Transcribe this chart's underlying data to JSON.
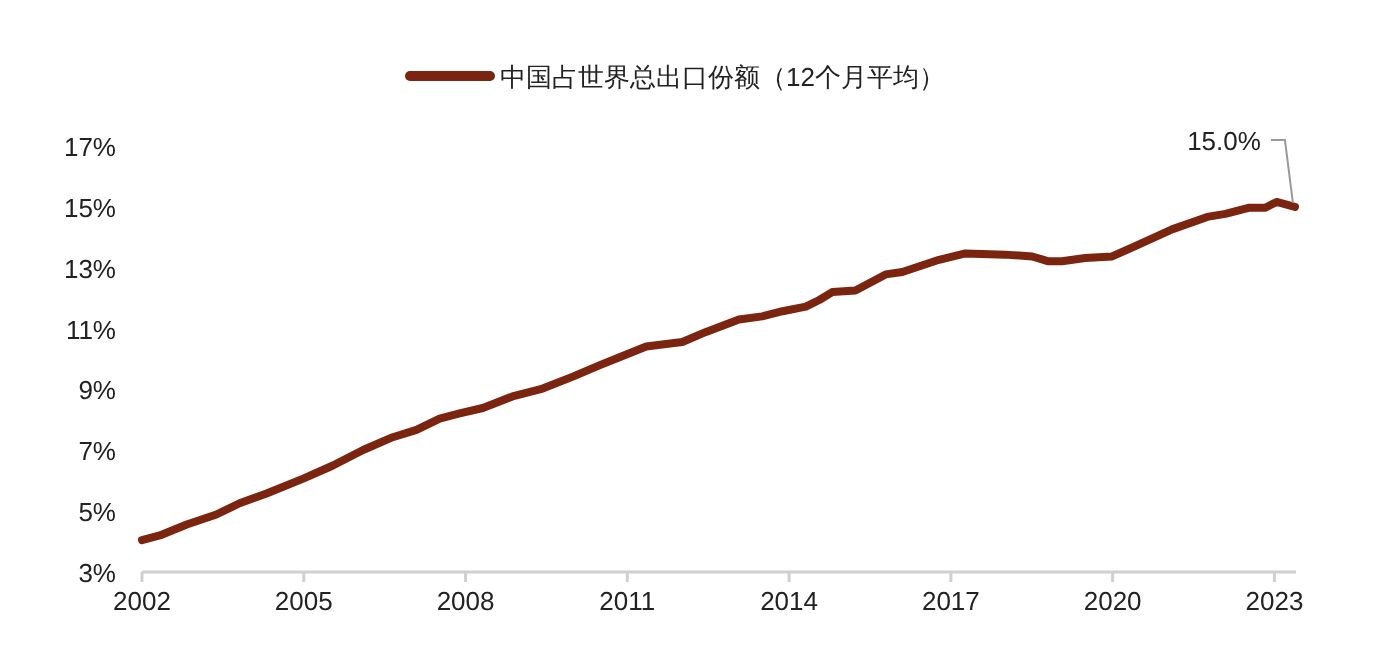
{
  "chart_data": {
    "type": "line",
    "legend": "top",
    "grid": false,
    "marker": "none",
    "line_style": "solid",
    "xlim": [
      2002,
      2023.4
    ],
    "xticks": [
      2002,
      2005,
      2008,
      2011,
      2014,
      2017,
      2020,
      2023
    ],
    "ylim": [
      3,
      17
    ],
    "yticks": [
      {
        "value": 3,
        "label": "3%"
      },
      {
        "value": 5,
        "label": "5%"
      },
      {
        "value": 7,
        "label": "7%"
      },
      {
        "value": 9,
        "label": "9%"
      },
      {
        "value": 11,
        "label": "11%"
      },
      {
        "value": 13,
        "label": "13%"
      },
      {
        "value": 15,
        "label": "15%"
      },
      {
        "value": 17,
        "label": "17%"
      }
    ],
    "annotations": [
      {
        "text": "15.0%",
        "x": 2023.38,
        "y": 15.0
      }
    ],
    "series": [
      {
        "name": "中国占世界总出口份额（12个月平均）",
        "color": "#7b2410",
        "x": [
          2002.0,
          2002.33,
          2002.83,
          2003.38,
          2003.81,
          2004.31,
          2004.99,
          2005.54,
          2006.1,
          2006.65,
          2007.09,
          2007.52,
          2007.89,
          2008.32,
          2008.87,
          2009.43,
          2009.99,
          2010.48,
          2010.97,
          2011.35,
          2012.02,
          2012.46,
          2013.07,
          2013.5,
          2013.88,
          2014.31,
          2014.56,
          2014.8,
          2015.23,
          2015.79,
          2016.1,
          2016.78,
          2017.27,
          2018.01,
          2018.51,
          2018.81,
          2019.06,
          2019.49,
          2019.99,
          2020.48,
          2021.1,
          2021.78,
          2022.09,
          2022.52,
          2022.83,
          2023.04,
          2023.38
        ],
        "values": [
          4.05,
          4.2,
          4.56,
          4.89,
          5.26,
          5.58,
          6.07,
          6.5,
          7.01,
          7.43,
          7.67,
          8.04,
          8.21,
          8.39,
          8.77,
          9.03,
          9.42,
          9.79,
          10.14,
          10.41,
          10.56,
          10.89,
          11.3,
          11.4,
          11.57,
          11.72,
          11.94,
          12.2,
          12.25,
          12.78,
          12.86,
          13.26,
          13.47,
          13.43,
          13.37,
          13.21,
          13.21,
          13.32,
          13.37,
          13.76,
          14.26,
          14.68,
          14.77,
          14.97,
          14.97,
          15.16,
          15.0
        ]
      }
    ]
  }
}
